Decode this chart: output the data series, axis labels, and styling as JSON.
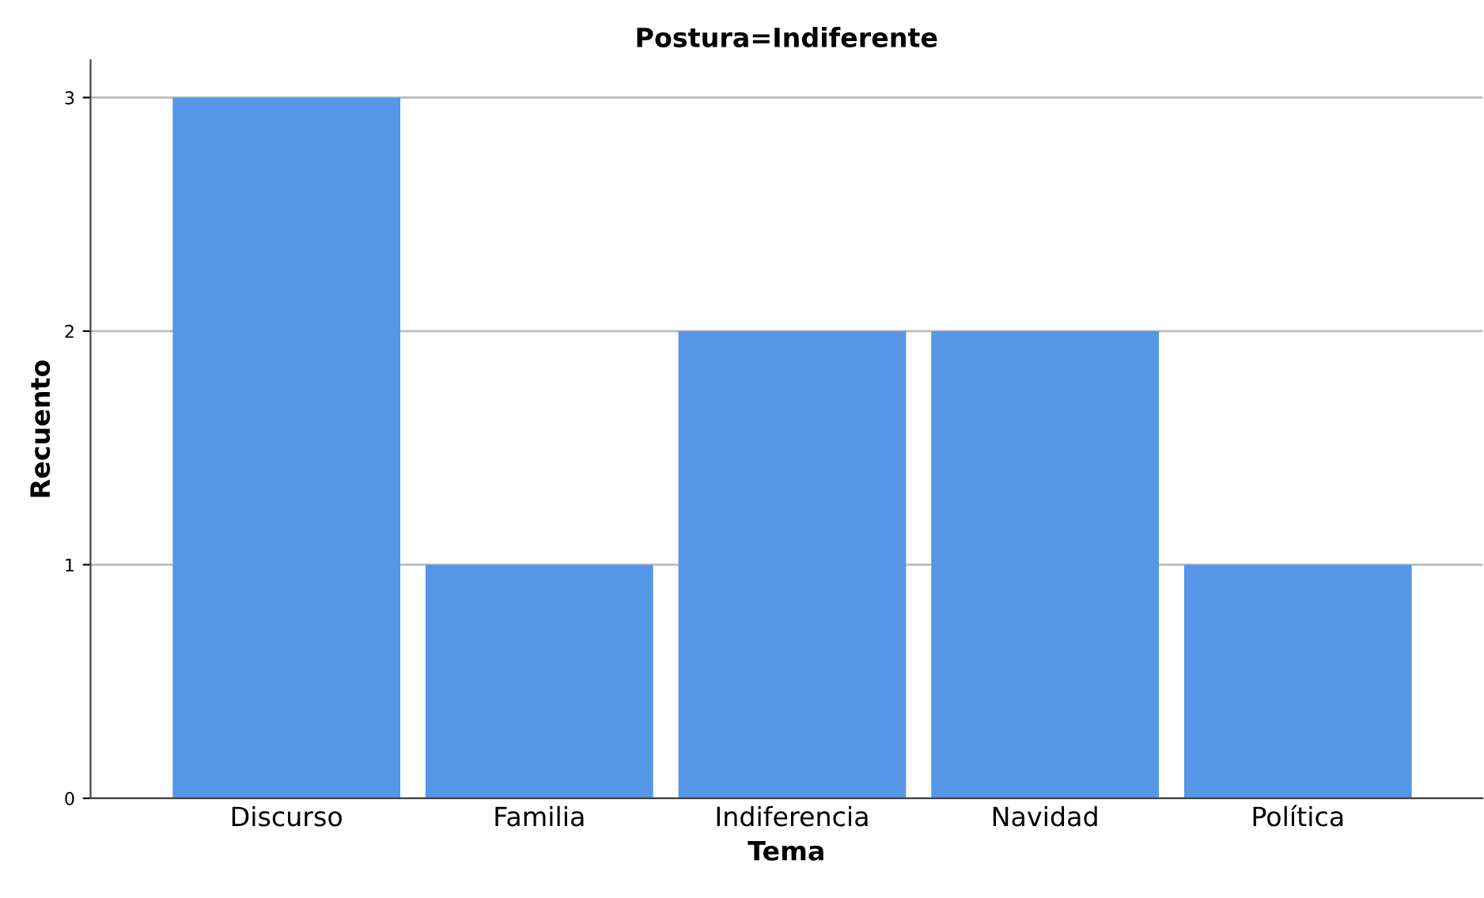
{
  "chart_data": {
    "type": "bar",
    "title": "Postura=Indiferente",
    "xlabel": "Tema",
    "ylabel": "Recuento",
    "categories": [
      "Discurso",
      "Familia",
      "Indiferencia",
      "Navidad",
      "Política"
    ],
    "values": [
      3,
      1,
      2,
      2,
      1
    ],
    "color": "#5596e6",
    "ylim": [
      0,
      3.16
    ],
    "yticks": [
      0,
      1,
      2,
      3
    ],
    "grid": "y",
    "legend": false
  }
}
